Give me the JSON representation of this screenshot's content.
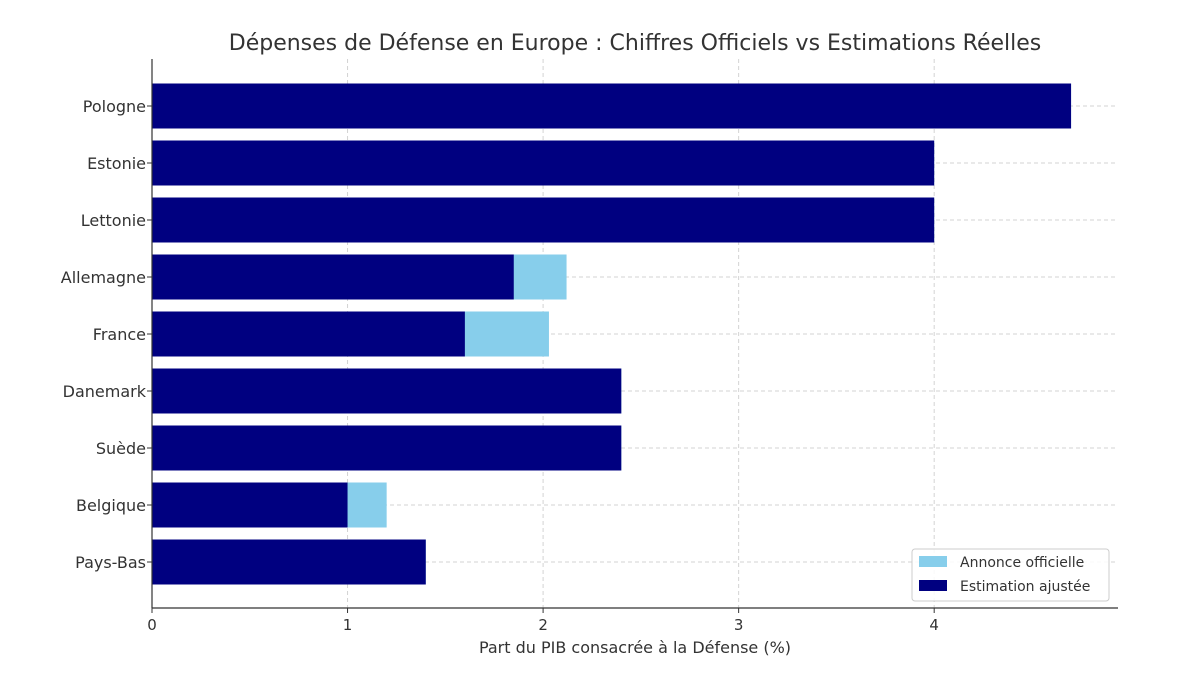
{
  "chart_data": {
    "type": "bar",
    "orientation": "horizontal",
    "title": "Dépenses de Défense en Europe : Chiffres Officiels vs Estimations Réelles",
    "xlabel": "Part du PIB consacrée à la Défense (%)",
    "ylabel": "",
    "categories": [
      "Pologne",
      "Estonie",
      "Lettonie",
      "Allemagne",
      "France",
      "Danemark",
      "Suède",
      "Belgique",
      "Pays-Bas"
    ],
    "series": [
      {
        "name": "Annonce officielle",
        "color": "#87ceeb",
        "values": [
          4.7,
          4.0,
          4.0,
          2.12,
          2.03,
          2.4,
          2.4,
          1.2,
          1.4
        ]
      },
      {
        "name": "Estimation ajustée",
        "color": "#000080",
        "values": [
          4.7,
          4.0,
          4.0,
          1.85,
          1.6,
          2.4,
          2.4,
          1.0,
          1.4
        ]
      }
    ],
    "xlim": [
      0,
      4.94
    ],
    "xticks": [
      "0",
      "1",
      "2",
      "3",
      "4"
    ],
    "grid": true,
    "legend_position": "lower-right"
  }
}
